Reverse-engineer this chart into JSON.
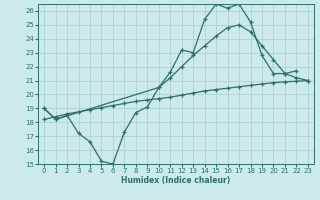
{
  "xlabel": "Humidex (Indice chaleur)",
  "bg_color": "#cceaea",
  "grid_color": "#a8cccc",
  "line_color": "#2d6e6e",
  "ylim": [
    15,
    26.5
  ],
  "xlim": [
    -0.5,
    23.5
  ],
  "yticks": [
    15,
    16,
    17,
    18,
    19,
    20,
    21,
    22,
    23,
    24,
    25,
    26
  ],
  "xticks": [
    0,
    1,
    2,
    3,
    4,
    5,
    6,
    7,
    8,
    9,
    10,
    11,
    12,
    13,
    14,
    15,
    16,
    17,
    18,
    19,
    20,
    21,
    22,
    23
  ],
  "series": [
    {
      "x": [
        0,
        1,
        2,
        3,
        4,
        5,
        6,
        7,
        8,
        9,
        10,
        11,
        12,
        13,
        14,
        15,
        16,
        17,
        18,
        19,
        20,
        21,
        22
      ],
      "y": [
        19,
        18.2,
        18.5,
        17.2,
        16.6,
        15.2,
        15.0,
        17.3,
        18.7,
        19.1,
        20.5,
        21.6,
        23.2,
        23.0,
        25.4,
        26.5,
        26.2,
        26.5,
        25.2,
        22.8,
        21.5,
        21.5,
        21.7
      ]
    },
    {
      "x": [
        0,
        1,
        10,
        11,
        12,
        13,
        14,
        15,
        16,
        17,
        18,
        19,
        20,
        21,
        22,
        23
      ],
      "y": [
        19,
        18.2,
        20.5,
        21.2,
        22.0,
        22.8,
        23.5,
        24.2,
        24.8,
        25.0,
        24.5,
        23.5,
        22.5,
        21.5,
        21.2,
        21.0
      ]
    },
    {
      "x": [
        0,
        1,
        2,
        3,
        4,
        5,
        6,
        7,
        8,
        9,
        10,
        11,
        12,
        13,
        14,
        15,
        16,
        17,
        18,
        19,
        20,
        21,
        22,
        23
      ],
      "y": [
        18.2,
        18.4,
        18.6,
        18.75,
        18.9,
        19.05,
        19.2,
        19.35,
        19.5,
        19.6,
        19.7,
        19.8,
        19.95,
        20.1,
        20.25,
        20.35,
        20.45,
        20.55,
        20.65,
        20.75,
        20.85,
        20.9,
        20.95,
        21.0
      ]
    }
  ]
}
